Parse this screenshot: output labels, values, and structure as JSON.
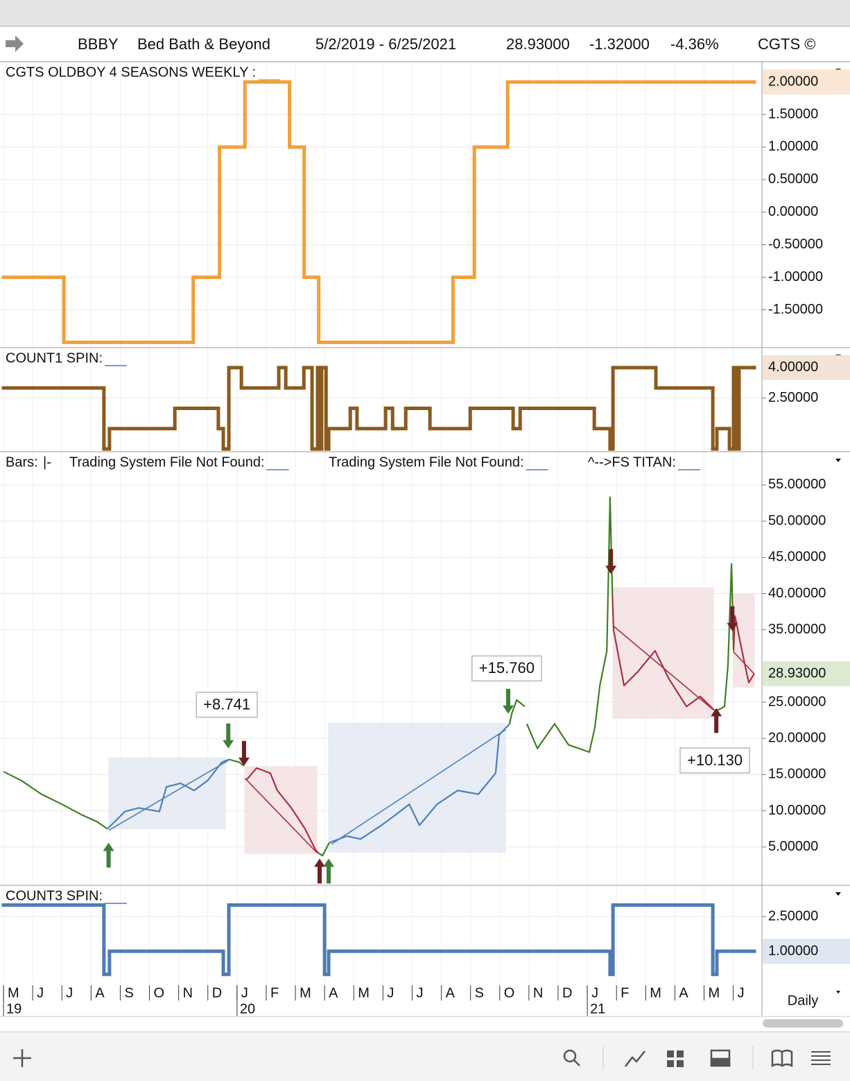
{
  "header": {
    "symbol": "BBBY",
    "name": "Bed Bath & Beyond",
    "range": "5/2/2019 - 6/25/2021",
    "last": "28.93000",
    "change": "-1.32000",
    "change_pct": "-4.36%",
    "brand": "CGTS ©"
  },
  "timeframe": "Daily",
  "chart_data": [
    {
      "type": "line",
      "step": true,
      "titles": [
        "CGTS OLDBOY 4 SEASONS WEEKLY :"
      ],
      "title_underline": "#f0a03c",
      "xlim": [
        -0.12,
        25.96
      ],
      "ylim": [
        -2.07,
        2.3
      ],
      "grid": true,
      "yticks": [
        {
          "value": 1.5,
          "label": "1.50000"
        },
        {
          "value": 1,
          "label": "1.00000"
        },
        {
          "value": 0.5,
          "label": "0.50000"
        },
        {
          "value": 0,
          "label": "0.00000"
        },
        {
          "value": -0.5,
          "label": "-0.50000"
        },
        {
          "value": -1,
          "label": "-1.00000"
        },
        {
          "value": -1.5,
          "label": "-1.50000"
        }
      ],
      "current": {
        "value": 2,
        "label": "2.00000"
      },
      "current_fill": "#fbe6d4",
      "series": [
        {
          "color": "#f0a03c",
          "x": [
            0,
            2.07,
            6.5,
            7.4,
            8.27,
            9.8,
            10.3,
            10.8,
            15.4,
            16.13,
            17.27,
            25.72
          ],
          "values": [
            -1,
            -2,
            -1,
            1,
            2,
            1,
            -1,
            -2,
            -1,
            1,
            2,
            2
          ]
        }
      ]
    },
    {
      "type": "line",
      "step": true,
      "titles": [
        "COUNT1 SPIN:"
      ],
      "title_underline": "#4f7bb3",
      "xlim": [
        -0.12,
        25.96
      ],
      "ylim": [
        -0.1,
        4.95
      ],
      "grid": true,
      "yticks": [
        {
          "value": 2.5,
          "label": "2.50000"
        }
      ],
      "current": {
        "value": 4,
        "label": "4.00000"
      },
      "current_fill": "#f3e4d6",
      "series": [
        {
          "color": "#8b5a1e",
          "x": [
            0,
            3.44,
            3.63,
            5.87,
            7.36,
            7.53,
            7.72,
            8.15,
            9.43,
            9.67,
            10.29,
            10.57,
            10.76,
            10.86,
            10.9,
            11.05,
            11.14,
            11.88,
            12.11,
            13.09,
            13.33,
            13.78,
            14.61,
            15.99,
            17.46,
            17.7,
            20.24,
            20.78,
            20.88,
            22.35,
            24.3,
            24.44,
            24.87,
            25.01,
            25.11,
            25.2,
            25.72
          ],
          "values": [
            3,
            0,
            1,
            2,
            1,
            0,
            4,
            3,
            4,
            3,
            4,
            0,
            4,
            0,
            4,
            0,
            1,
            2,
            1,
            2,
            1,
            2,
            1,
            2,
            1,
            2,
            1,
            0,
            4,
            3,
            0,
            1,
            0,
            4,
            0,
            4,
            4
          ]
        }
      ]
    },
    {
      "type": "price",
      "titles": [
        "Bars:",
        "|-",
        "Trading System File Not Found:",
        "Trading System File Not Found:",
        "^-->FS TITAN:"
      ],
      "title_underline": "#4f7bb3",
      "xlim": [
        -0.12,
        25.96
      ],
      "ylim": [
        -0.2,
        59.5
      ],
      "grid": true,
      "yticks": [
        {
          "value": 5,
          "label": "5.00000"
        },
        {
          "value": 10,
          "label": "10.00000"
        },
        {
          "value": 15,
          "label": "15.00000"
        },
        {
          "value": 20,
          "label": "20.00000"
        },
        {
          "value": 25,
          "label": "25.00000"
        },
        {
          "value": 35,
          "label": "35.00000"
        },
        {
          "value": 40,
          "label": "40.00000"
        },
        {
          "value": 45,
          "label": "45.00000"
        },
        {
          "value": 50,
          "label": "50.00000"
        },
        {
          "value": 55,
          "label": "55.00000"
        }
      ],
      "current": {
        "value": 28.93,
        "label": "28.93000"
      },
      "current_fill": "#dcead2",
      "series": [
        {
          "color": "#3f7f24",
          "x": [
            0,
            0.6,
            1.3,
            2.0,
            2.7,
            3.2,
            3.56
          ],
          "values": [
            15.4,
            14.2,
            12.3,
            10.9,
            9.4,
            8.5,
            7.5
          ]
        },
        {
          "color": "#4a80b8",
          "x": [
            3.56,
            4.16,
            4.63,
            5.34,
            5.58,
            6.06,
            6.53,
            7.0,
            7.48,
            7.72
          ],
          "values": [
            7.5,
            9.9,
            10.4,
            9.9,
            13.3,
            13.8,
            12.8,
            14.2,
            16.7,
            17.1
          ]
        },
        {
          "color": "#3f7f24",
          "x": [
            7.72,
            8.08,
            8.24
          ],
          "values": [
            17.1,
            16.7,
            16.2
          ]
        },
        {
          "color": "#a6323f",
          "x": [
            8.31,
            8.67,
            9.14,
            9.38,
            9.86,
            10.33,
            10.69,
            10.81
          ],
          "values": [
            14.2,
            15.9,
            15.2,
            12.8,
            10.4,
            7.5,
            4.6,
            4.1
          ]
        },
        {
          "color": "#3f7f24",
          "x": [
            10.81,
            10.93,
            11.16
          ],
          "values": [
            4.1,
            3.8,
            5.6
          ]
        },
        {
          "color": "#4a80b8",
          "x": [
            11.16,
            11.76,
            12.23,
            12.95,
            13.42,
            13.9,
            14.25,
            14.85,
            15.56,
            16.27,
            16.86,
            16.98,
            17.34
          ],
          "values": [
            5.6,
            6.5,
            6.1,
            8.0,
            9.4,
            10.9,
            8.0,
            10.9,
            12.8,
            12.3,
            15.2,
            20.5,
            22.0
          ]
        },
        {
          "color": "#3f7f24",
          "x": [
            17.34,
            17.41,
            17.58,
            17.86,
            17.9,
            17.93,
            18.29,
            18.88,
            19.36,
            20.07,
            20.26,
            20.43,
            20.67,
            20.78,
            20.86
          ],
          "values": [
            22.0,
            23.4,
            25.3,
            24.4,
            null,
            22.0,
            18.6,
            22.0,
            19.1,
            18.1,
            21.5,
            27.3,
            32.1,
            53.3,
            39.8
          ]
        },
        {
          "color": "#a6323f",
          "x": [
            20.86,
            20.9,
            21.26,
            21.73,
            22.32,
            22.8,
            23.4,
            23.87,
            24.35
          ],
          "values": [
            39.8,
            35.0,
            27.3,
            29.2,
            32.1,
            28.2,
            24.4,
            25.8,
            23.9
          ]
        },
        {
          "color": "#3f7f24",
          "x": [
            24.35,
            24.47,
            24.7,
            24.82,
            24.94,
            25.01
          ],
          "values": [
            23.9,
            23.9,
            24.4,
            30.1,
            44.1,
            32.1
          ]
        },
        {
          "color": "#a6323f",
          "x": [
            25.01,
            25.06,
            25.3,
            25.53,
            25.72
          ],
          "values": [
            32.1,
            36.9,
            32.1,
            27.7,
            28.93
          ]
        }
      ],
      "trades": [
        {
          "x": [
            3.61,
            7.6
          ],
          "range": [
            7.5,
            17.3
          ],
          "line_x": [
            3.61,
            7.72
          ],
          "line_y": [
            7.3,
            17.0
          ],
          "fill": "#e3e9f3",
          "color": "#4a80b8"
        },
        {
          "x": [
            8.27,
            10.74
          ],
          "range": [
            4.1,
            16.1
          ],
          "line_x": [
            8.27,
            10.74
          ],
          "line_y": [
            14.5,
            4.2
          ],
          "fill": "#f4e0e2",
          "color": "#a6323f"
        },
        {
          "x": [
            11.14,
            17.2
          ],
          "range": [
            4.3,
            22.1
          ],
          "line_x": [
            11.24,
            17.2
          ],
          "line_y": [
            5.4,
            21.2
          ],
          "fill": "#e3e9f3",
          "color": "#4a80b8"
        },
        {
          "x": [
            20.88,
            24.32
          ],
          "range": [
            22.8,
            40.8
          ],
          "line_x": [
            20.9,
            24.3
          ],
          "line_y": [
            35.5,
            24.0
          ],
          "fill": "#f4e0e2",
          "color": "#a6323f"
        },
        {
          "x": [
            25.0,
            25.72
          ],
          "range": [
            27.1,
            40.0
          ],
          "line_x": [
            25.0,
            25.72
          ],
          "line_y": [
            32.0,
            28.9
          ],
          "fill": "#f4e0e2",
          "color": "#a6323f"
        }
      ],
      "signals": [
        {
          "x": 3.6,
          "y": 5.6,
          "dir": "up",
          "color": "#3f7f3a"
        },
        {
          "x": 7.7,
          "y": 18.6,
          "dir": "down",
          "color": "#3f7f3a"
        },
        {
          "x": 8.24,
          "y": 16.2,
          "dir": "down",
          "color": "#6e1f26"
        },
        {
          "x": 10.83,
          "y": 3.4,
          "dir": "up",
          "color": "#6e1f26"
        },
        {
          "x": 11.14,
          "y": 3.4,
          "dir": "up",
          "color": "#3f7f3a"
        },
        {
          "x": 17.29,
          "y": 23.4,
          "dir": "down",
          "color": "#3f7f3a"
        },
        {
          "x": 20.81,
          "y": 42.7,
          "dir": "down",
          "color": "#6e1f26"
        },
        {
          "x": 24.42,
          "y": 24.2,
          "dir": "up",
          "color": "#6e1f26"
        },
        {
          "x": 24.97,
          "y": 34.8,
          "dir": "down",
          "color": "#6e1f26"
        }
      ],
      "annotations": [
        {
          "text": "+8.741",
          "x": 7.65,
          "y": 24.65,
          "color": "#3f7f24"
        },
        {
          "text": "+15.760",
          "x": 17.24,
          "y": 29.66,
          "color": "#3f7f24"
        },
        {
          "text": "+10.130",
          "x": 24.37,
          "y": 16.95,
          "color": "#a6323f"
        }
      ]
    },
    {
      "type": "line",
      "step": true,
      "titles": [
        "COUNT3 SPIN:"
      ],
      "title_underline": "#4f7bb3",
      "xlim": [
        -0.12,
        25.96
      ],
      "ylim": [
        -0.41,
        3.82
      ],
      "grid": true,
      "yticks": [
        {
          "value": 2.5,
          "label": "2.50000"
        }
      ],
      "current": {
        "value": 1,
        "label": "1.00000"
      },
      "current_fill": "#dde6f1",
      "series": [
        {
          "color": "#4f7bb3",
          "x": [
            0,
            3.44,
            3.63,
            7.53,
            7.72,
            11.0,
            11.14,
            20.78,
            20.88,
            24.3,
            24.44,
            25.72
          ],
          "values": [
            3,
            0,
            1,
            0,
            3,
            0,
            1,
            0,
            3,
            0,
            1,
            1
          ]
        }
      ],
      "xticks": [
        {
          "value": 0,
          "label": "M"
        },
        {
          "value": 1,
          "label": "J"
        },
        {
          "value": 2,
          "label": "J"
        },
        {
          "value": 3,
          "label": "A"
        },
        {
          "value": 4,
          "label": "S"
        },
        {
          "value": 5,
          "label": "O"
        },
        {
          "value": 6,
          "label": "N"
        },
        {
          "value": 7,
          "label": "D"
        },
        {
          "value": 8,
          "label": "J"
        },
        {
          "value": 9,
          "label": "F"
        },
        {
          "value": 10,
          "label": "M"
        },
        {
          "value": 11,
          "label": "A"
        },
        {
          "value": 12,
          "label": "M"
        },
        {
          "value": 13,
          "label": "J"
        },
        {
          "value": 14,
          "label": "J"
        },
        {
          "value": 15,
          "label": "A"
        },
        {
          "value": 16,
          "label": "S"
        },
        {
          "value": 17,
          "label": "O"
        },
        {
          "value": 18,
          "label": "N"
        },
        {
          "value": 19,
          "label": "D"
        },
        {
          "value": 20,
          "label": "J"
        },
        {
          "value": 21,
          "label": "F"
        },
        {
          "value": 22,
          "label": "M"
        },
        {
          "value": 23,
          "label": "A"
        },
        {
          "value": 24,
          "label": "M"
        },
        {
          "value": 25,
          "label": "J"
        }
      ],
      "year_ticks": [
        {
          "value": 0,
          "label": "19"
        },
        {
          "value": 8,
          "label": "20"
        },
        {
          "value": 20,
          "label": "21"
        }
      ]
    }
  ]
}
